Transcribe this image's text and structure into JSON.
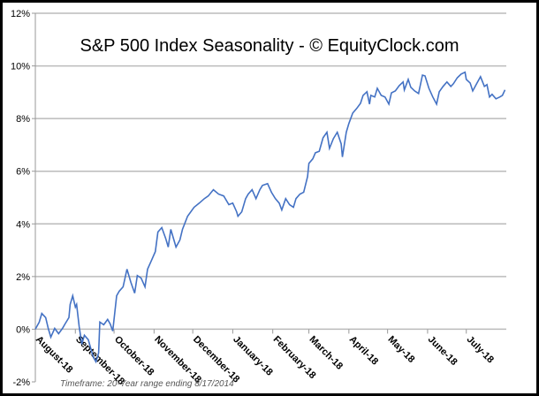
{
  "chart_data": {
    "type": "line",
    "title": "S&P 500 Index Seasonality - © EquityClock.com",
    "footnote": "Timeframe: 20-Year range ending 8/17/2014",
    "xlabel": "",
    "ylabel": "",
    "ylim": [
      -2,
      12
    ],
    "yticks": [
      "-2%",
      "0%",
      "2%",
      "4%",
      "6%",
      "8%",
      "10%",
      "12%"
    ],
    "xticks": [
      "August-18",
      "September-18",
      "October-18",
      "November-18",
      "December-18",
      "January-18",
      "February-18",
      "March-18",
      "April-18",
      "May-18",
      "June-18",
      "July-18"
    ],
    "grid": "horizontal",
    "line_color": "#4472C4",
    "series": [
      {
        "x": [
          "08-01",
          "08-04",
          "08-06",
          "08-09",
          "08-11",
          "08-13",
          "08-16",
          "08-19",
          "08-22",
          "08-24",
          "08-27",
          "08-28",
          "08-30",
          "09-01",
          "09-02",
          "09-04",
          "09-06",
          "09-08",
          "09-11",
          "09-13",
          "09-15",
          "09-17",
          "09-19",
          "09-20",
          "09-23",
          "09-26",
          "09-28",
          "09-30",
          "10-03",
          "10-05",
          "10-08",
          "10-11",
          "10-14",
          "10-17",
          "10-19",
          "10-22",
          "10-25",
          "10-27",
          "10-30",
          "11-02",
          "11-04",
          "11-07",
          "11-10",
          "11-12",
          "11-14",
          "11-18",
          "11-21",
          "11-23",
          "11-27",
          "12-02",
          "12-06",
          "12-10",
          "12-13",
          "12-17",
          "12-21",
          "12-25",
          "12-29",
          "01-01",
          "01-04",
          "01-05",
          "01-08",
          "01-11",
          "01-13",
          "01-16",
          "01-19",
          "01-22",
          "01-24",
          "01-28",
          "01-31",
          "02-03",
          "02-06",
          "02-08",
          "02-11",
          "02-14",
          "02-17",
          "02-19",
          "02-22",
          "02-25",
          "02-28",
          "03-01",
          "03-04",
          "03-06",
          "03-09",
          "03-12",
          "03-15",
          "03-17",
          "03-20",
          "03-23",
          "03-26",
          "03-27",
          "03-30",
          "04-01",
          "04-04",
          "04-07",
          "04-10",
          "04-12",
          "04-15",
          "04-17",
          "04-18",
          "04-21",
          "04-23",
          "04-26",
          "04-29",
          "05-02",
          "05-04",
          "05-07",
          "05-10",
          "05-13",
          "05-14",
          "05-17",
          "05-19",
          "05-22",
          "05-25",
          "05-28",
          "05-30",
          "06-02",
          "06-05",
          "06-08",
          "06-10",
          "06-13",
          "06-16",
          "06-19",
          "06-21",
          "06-24",
          "06-27",
          "06-30",
          "07-01",
          "07-04",
          "07-06",
          "07-09",
          "07-12",
          "07-15",
          "07-17",
          "07-19",
          "07-21",
          "07-24",
          "07-27",
          "07-29",
          "07-31"
        ],
        "y": [
          0,
          0.27,
          0.6,
          0.44,
          0.03,
          -0.3,
          0.03,
          -0.17,
          0.03,
          0.2,
          0.44,
          0.94,
          1.27,
          0.84,
          0.94,
          0.1,
          -0.57,
          -0.23,
          -0.4,
          -0.74,
          -1.07,
          -1.24,
          -0.9,
          0.27,
          0.17,
          0.37,
          0.2,
          -0.07,
          1.27,
          1.44,
          1.61,
          2.28,
          1.78,
          1.37,
          2.04,
          1.94,
          1.61,
          2.28,
          2.61,
          2.95,
          3.69,
          3.86,
          3.45,
          3.12,
          3.79,
          3.12,
          3.39,
          3.79,
          4.29,
          4.63,
          4.79,
          4.96,
          5.06,
          5.3,
          5.13,
          5.06,
          4.73,
          4.79,
          4.46,
          4.29,
          4.46,
          4.96,
          5.13,
          5.3,
          4.96,
          5.3,
          5.46,
          5.53,
          5.2,
          4.96,
          4.79,
          4.53,
          4.96,
          4.73,
          4.63,
          4.96,
          5.13,
          5.2,
          5.8,
          6.3,
          6.47,
          6.7,
          6.76,
          7.27,
          7.48,
          6.87,
          7.24,
          7.48,
          7.04,
          6.54,
          7.48,
          7.81,
          8.21,
          8.38,
          8.58,
          8.88,
          9.02,
          8.55,
          8.88,
          8.82,
          9.15,
          8.88,
          8.82,
          8.55,
          8.98,
          9.05,
          9.25,
          9.39,
          9.09,
          9.49,
          9.19,
          9.05,
          8.95,
          9.65,
          9.62,
          9.15,
          8.82,
          8.55,
          9.02,
          9.22,
          9.39,
          9.22,
          9.32,
          9.55,
          9.69,
          9.76,
          9.49,
          9.35,
          9.05,
          9.32,
          9.59,
          9.22,
          9.29,
          8.82,
          8.92,
          8.75,
          8.82,
          8.88,
          9.09
        ]
      }
    ]
  }
}
